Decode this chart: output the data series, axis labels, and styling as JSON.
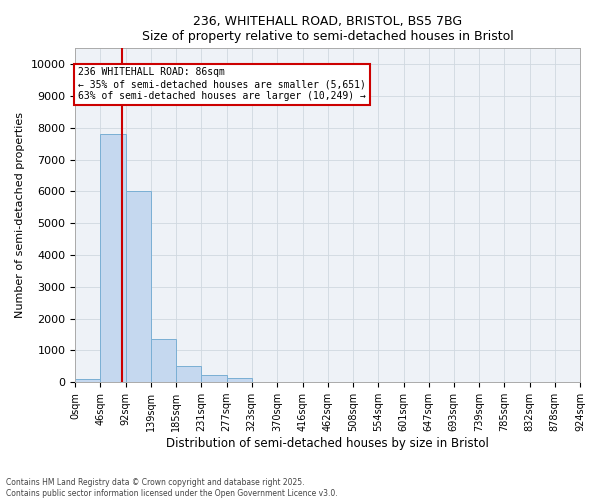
{
  "title_line1": "236, WHITEHALL ROAD, BRISTOL, BS5 7BG",
  "title_line2": "Size of property relative to semi-detached houses in Bristol",
  "xlabel": "Distribution of semi-detached houses by size in Bristol",
  "ylabel": "Number of semi-detached properties",
  "property_size": 86,
  "property_label": "236 WHITEHALL ROAD: 86sqm",
  "pct_smaller": 35,
  "count_smaller": 5651,
  "pct_larger": 63,
  "count_larger": 10249,
  "bin_edges": [
    0,
    46,
    92,
    139,
    185,
    231,
    277,
    323,
    370,
    416,
    462,
    508,
    554,
    601,
    647,
    693,
    739,
    785,
    832,
    878,
    924
  ],
  "bar_heights": [
    100,
    7800,
    6000,
    1350,
    500,
    230,
    130,
    0,
    0,
    0,
    0,
    0,
    0,
    0,
    0,
    0,
    0,
    0,
    0,
    0
  ],
  "bar_color": "#c5d8ef",
  "bar_edgecolor": "#7aafd4",
  "redline_color": "#cc0000",
  "annotation_box_color": "#cc0000",
  "grid_color": "#d0d8e0",
  "background_color": "#eef2f7",
  "ylim": [
    0,
    10500
  ],
  "yticks": [
    0,
    1000,
    2000,
    3000,
    4000,
    5000,
    6000,
    7000,
    8000,
    9000,
    10000
  ],
  "footer_line1": "Contains HM Land Registry data © Crown copyright and database right 2025.",
  "footer_line2": "Contains public sector information licensed under the Open Government Licence v3.0."
}
